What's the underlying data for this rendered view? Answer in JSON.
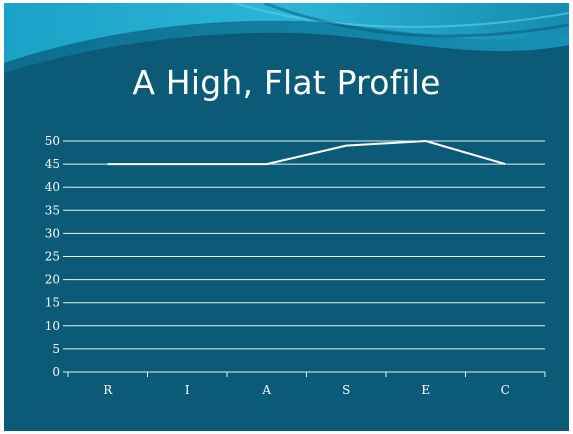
{
  "slide": {
    "title": "A High, Flat Profile"
  },
  "colors": {
    "background": "#0b5b78",
    "wave_light": "#1aa3c7",
    "wave_mid": "#168cb0",
    "line": "#ffffff",
    "grid": "#e8f2f6"
  },
  "chart_data": {
    "type": "line",
    "categories": [
      "R",
      "I",
      "A",
      "S",
      "E",
      "C"
    ],
    "series": [
      {
        "values": [
          45,
          45,
          45,
          49,
          50,
          45
        ]
      }
    ],
    "ylim": [
      0,
      50
    ],
    "yticks": [
      0,
      5,
      10,
      15,
      20,
      25,
      30,
      35,
      40,
      45,
      50
    ],
    "ytick_labels": [
      "0",
      "5",
      "10",
      "15",
      "20",
      "25",
      "30",
      "35",
      "40",
      "45",
      "50"
    ],
    "grid": true,
    "legend": "none"
  }
}
